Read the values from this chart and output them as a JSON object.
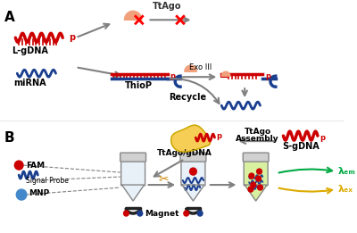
{
  "bg_color": "#ffffff",
  "panel_A_label": "A",
  "panel_B_label": "B",
  "red_color": "#cc0000",
  "blue_color": "#1a3f8f",
  "gold_color": "#f5c842",
  "salmon_color": "#f0a07a",
  "gray_color": "#808080",
  "green_color": "#00aa44",
  "orange_color": "#ddaa00",
  "label_lgdna": "L-gDNA",
  "label_mirna": "miRNA",
  "label_thiop": "ThioP",
  "label_exoiii": "Exo III",
  "label_recycle": "Recycle",
  "label_ttago": "TtAgo",
  "label_ttago_gdna": "TtAgo/gDNA",
  "label_assembly_line1": "TtAgo",
  "label_assembly_line2": "Assembly",
  "label_sgdna": "S-gDNA",
  "label_fam": "FAM",
  "label_signal_probe": "Signal Probe",
  "label_mnp": "MNP",
  "label_magnet": "Magnet",
  "label_p": "p",
  "label_lam_em": "λₑₘ",
  "label_lam_ex": "λₑₓ"
}
